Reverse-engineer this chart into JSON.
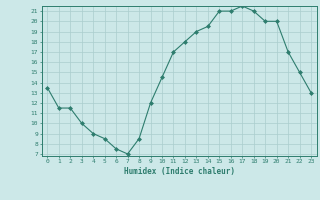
{
  "x": [
    0,
    1,
    2,
    3,
    4,
    5,
    6,
    7,
    8,
    9,
    10,
    11,
    12,
    13,
    14,
    15,
    16,
    17,
    18,
    19,
    20,
    21,
    22,
    23
  ],
  "y": [
    13.5,
    11.5,
    11.5,
    10.0,
    9.0,
    8.5,
    7.5,
    7.0,
    8.5,
    12.0,
    14.5,
    17.0,
    18.0,
    19.0,
    19.5,
    21.0,
    21.0,
    21.5,
    21.0,
    20.0,
    20.0,
    17.0,
    15.0,
    13.0
  ],
  "title": "",
  "xlabel": "Humidex (Indice chaleur)",
  "ylabel": "",
  "xlim": [
    -0.5,
    23.5
  ],
  "ylim": [
    6.8,
    21.5
  ],
  "yticks": [
    7,
    8,
    9,
    10,
    11,
    12,
    13,
    14,
    15,
    16,
    17,
    18,
    19,
    20,
    21
  ],
  "xticks": [
    0,
    1,
    2,
    3,
    4,
    5,
    6,
    7,
    8,
    9,
    10,
    11,
    12,
    13,
    14,
    15,
    16,
    17,
    18,
    19,
    20,
    21,
    22,
    23
  ],
  "line_color": "#2e7d6e",
  "marker_color": "#2e7d6e",
  "bg_color": "#cce8e8",
  "grid_color": "#aacece",
  "xlabel_color": "#2e7d6e",
  "tick_color": "#2e7d6e",
  "spine_color": "#2e7d6e"
}
